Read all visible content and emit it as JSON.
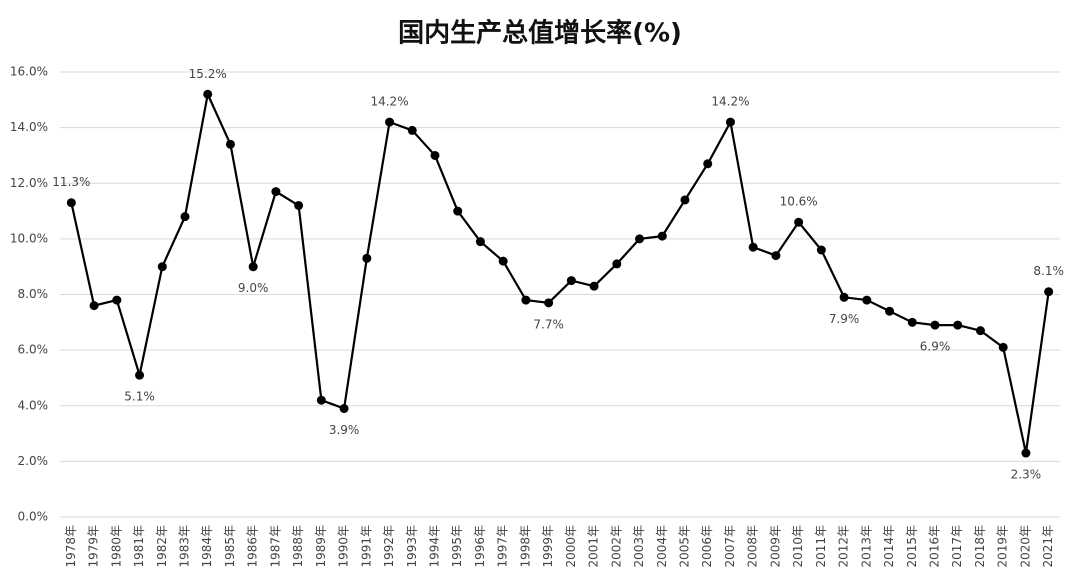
{
  "chart_data": {
    "type": "line",
    "title": "国内生产总值增长率(%)",
    "categories": [
      "1978年",
      "1979年",
      "1980年",
      "1981年",
      "1982年",
      "1983年",
      "1984年",
      "1985年",
      "1986年",
      "1987年",
      "1988年",
      "1989年",
      "1990年",
      "1991年",
      "1992年",
      "1993年",
      "1994年",
      "1995年",
      "1996年",
      "1997年",
      "1998年",
      "1999年",
      "2000年",
      "2001年",
      "2002年",
      "2003年",
      "2004年",
      "2005年",
      "2006年",
      "2007年",
      "2008年",
      "2009年",
      "2010年",
      "2011年",
      "2012年",
      "2013年",
      "2014年",
      "2015年",
      "2016年",
      "2017年",
      "2018年",
      "2019年",
      "2020年",
      "2021年"
    ],
    "series": [
      {
        "color": "#000000",
        "values": [
          11.3,
          7.6,
          7.8,
          5.1,
          9.0,
          10.8,
          15.2,
          13.4,
          9.0,
          11.7,
          11.2,
          4.2,
          3.9,
          9.3,
          14.2,
          13.9,
          13.0,
          11.0,
          9.9,
          9.2,
          7.8,
          7.7,
          8.5,
          8.3,
          9.1,
          10.0,
          10.1,
          11.4,
          12.7,
          14.2,
          9.7,
          9.4,
          10.6,
          9.6,
          7.9,
          7.8,
          7.4,
          7.0,
          6.9,
          6.9,
          6.7,
          6.1,
          2.3,
          8.1
        ],
        "value_labels": [
          "11.3%",
          null,
          null,
          "5.1%",
          null,
          null,
          "15.2%",
          null,
          "9.0%",
          null,
          null,
          null,
          "3.9%",
          null,
          "14.2%",
          null,
          null,
          null,
          null,
          null,
          null,
          "7.7%",
          null,
          null,
          null,
          null,
          null,
          null,
          null,
          "14.2%",
          null,
          null,
          "10.6%",
          null,
          "7.9%",
          null,
          null,
          null,
          "6.9%",
          null,
          null,
          null,
          "2.3%",
          "8.1%"
        ]
      }
    ],
    "ylim": [
      0,
      16
    ],
    "yticks": [
      {
        "value": 0,
        "label": "0.0%"
      },
      {
        "value": 2,
        "label": "2.0%"
      },
      {
        "value": 4,
        "label": "4.0%"
      },
      {
        "value": 6,
        "label": "6.0%"
      },
      {
        "value": 8,
        "label": "8.0%"
      },
      {
        "value": 10,
        "label": "10.0%"
      },
      {
        "value": 12,
        "label": "12.0%"
      },
      {
        "value": 14,
        "label": "14.0%"
      },
      {
        "value": 16,
        "label": "16.0%"
      }
    ],
    "grid": true
  }
}
